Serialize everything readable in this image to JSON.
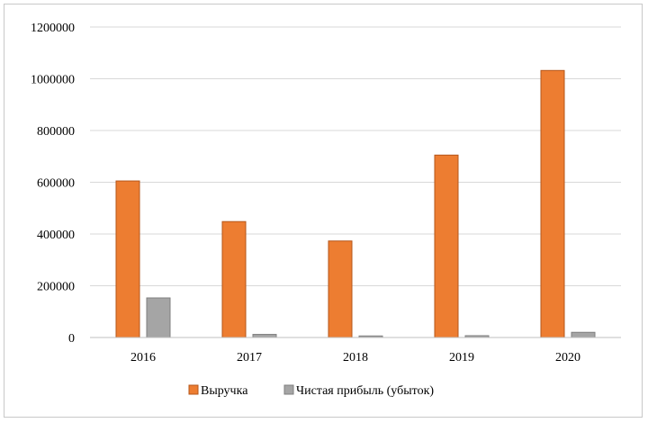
{
  "chart_data": {
    "type": "bar",
    "title": "",
    "xlabel": "",
    "ylabel": "",
    "categories": [
      "2016",
      "2017",
      "2018",
      "2019",
      "2020"
    ],
    "series": [
      {
        "name": "Выручка",
        "color": "#ED7D31",
        "values": [
          605000,
          448000,
          373000,
          705000,
          1032000
        ]
      },
      {
        "name": "Чистая прибыль (убыток)",
        "color": "#A5A5A5",
        "values": [
          153000,
          12000,
          6000,
          7000,
          20000
        ]
      }
    ],
    "ylim": [
      0,
      1200000
    ],
    "yticks": [
      "0",
      "200000",
      "400000",
      "600000",
      "800000",
      "1000000",
      "1200000"
    ],
    "grid": true,
    "legend_position": "bottom"
  }
}
